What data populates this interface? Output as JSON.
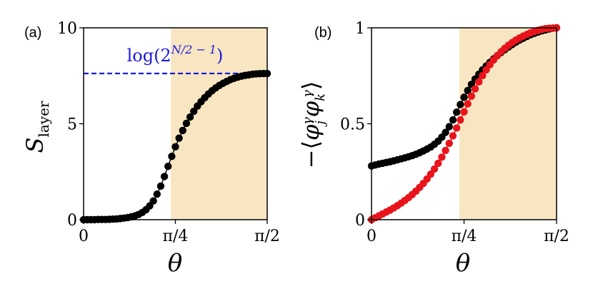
{
  "chart_data": [
    {
      "panel": "(a)",
      "type": "scatter",
      "xlabel": "θ",
      "ylabel": "S",
      "ylabel_sub": "layer",
      "xlim": [
        0,
        1.5708
      ],
      "ylim": [
        0,
        10
      ],
      "xticks": [
        {
          "value": 0,
          "label": "0"
        },
        {
          "value": 0.7854,
          "label": "π/4"
        },
        {
          "value": 1.5708,
          "label": "π/2"
        }
      ],
      "yticks": [
        {
          "value": 0,
          "label": "0"
        },
        {
          "value": 5,
          "label": "5"
        },
        {
          "value": 10,
          "label": "10"
        }
      ],
      "shaded_region": {
        "x_from": 0.7461,
        "x_to": 1.5708,
        "color": "#f8e6c2"
      },
      "reference_line": {
        "y": 7.62,
        "label": "log(2",
        "label_sup": "N/2 − 1",
        "label_end": ")",
        "color": "#1a1adb",
        "style": "dashed"
      },
      "grid": false,
      "series": [
        {
          "color": "#000000",
          "n_points": 51,
          "x": [
            0,
            0.0314,
            0.0628,
            0.0942,
            0.1257,
            0.1571,
            0.1885,
            0.2199,
            0.2513,
            0.2827,
            0.3142,
            0.3456,
            0.377,
            0.4084,
            0.4398,
            0.4712,
            0.5027,
            0.5341,
            0.5655,
            0.5969,
            0.6283,
            0.6597,
            0.6912,
            0.7226,
            0.754,
            0.7854,
            0.8168,
            0.8482,
            0.8796,
            0.9111,
            0.9425,
            0.9739,
            1.0053,
            1.0367,
            1.0681,
            1.0996,
            1.131,
            1.1624,
            1.1938,
            1.2252,
            1.2566,
            1.2881,
            1.3195,
            1.3509,
            1.3823,
            1.4137,
            1.4451,
            1.4765,
            1.508,
            1.5394,
            1.5708
          ],
          "y": [
            0,
            0,
            0,
            0,
            0.01,
            0.01,
            0.01,
            0.02,
            0.03,
            0.04,
            0.06,
            0.08,
            0.11,
            0.15,
            0.2,
            0.27,
            0.38,
            0.52,
            0.72,
            0.98,
            1.33,
            1.75,
            2.25,
            2.78,
            3.3,
            3.8,
            4.25,
            4.65,
            5.02,
            5.35,
            5.65,
            5.92,
            6.15,
            6.36,
            6.55,
            6.72,
            6.87,
            7.0,
            7.11,
            7.21,
            7.3,
            7.37,
            7.43,
            7.48,
            7.52,
            7.55,
            7.58,
            7.6,
            7.61,
            7.62,
            7.62
          ]
        }
      ]
    },
    {
      "panel": "(b)",
      "type": "scatter",
      "xlabel": "θ",
      "ylabel": "−⟨φ",
      "ylabel_parts": [
        "−⟨",
        "φ",
        "j",
        "γ",
        "φ",
        "k",
        "γ",
        "⟩"
      ],
      "xlim": [
        0,
        1.5708
      ],
      "ylim": [
        0,
        1
      ],
      "xticks": [
        {
          "value": 0,
          "label": "0"
        },
        {
          "value": 0.7854,
          "label": "π/4"
        },
        {
          "value": 1.5708,
          "label": "π/2"
        }
      ],
      "yticks": [
        {
          "value": 0,
          "label": "0"
        },
        {
          "value": 0.5,
          "label": "0.5"
        },
        {
          "value": 1,
          "label": "1"
        }
      ],
      "shaded_region": {
        "x_from": 0.7461,
        "x_to": 1.5708,
        "color": "#f8e6c2"
      },
      "grid": false,
      "series": [
        {
          "color": "#000000",
          "n_points": 51,
          "x": [
            0,
            0.0314,
            0.0628,
            0.0942,
            0.1257,
            0.1571,
            0.1885,
            0.2199,
            0.2513,
            0.2827,
            0.3142,
            0.3456,
            0.377,
            0.4084,
            0.4398,
            0.4712,
            0.5027,
            0.5341,
            0.5655,
            0.5969,
            0.6283,
            0.6597,
            0.6912,
            0.7226,
            0.754,
            0.7854,
            0.8168,
            0.8482,
            0.8796,
            0.9111,
            0.9425,
            0.9739,
            1.0053,
            1.0367,
            1.0681,
            1.0996,
            1.131,
            1.1624,
            1.1938,
            1.2252,
            1.2566,
            1.2881,
            1.3195,
            1.3509,
            1.3823,
            1.4137,
            1.4451,
            1.4765,
            1.508,
            1.5394,
            1.5708
          ],
          "y": [
            0.28,
            0.285,
            0.29,
            0.294,
            0.298,
            0.302,
            0.307,
            0.312,
            0.317,
            0.322,
            0.328,
            0.334,
            0.341,
            0.349,
            0.358,
            0.368,
            0.379,
            0.393,
            0.409,
            0.43,
            0.455,
            0.485,
            0.52,
            0.56,
            0.6,
            0.638,
            0.673,
            0.705,
            0.733,
            0.758,
            0.781,
            0.801,
            0.82,
            0.838,
            0.855,
            0.871,
            0.886,
            0.9,
            0.913,
            0.925,
            0.936,
            0.946,
            0.955,
            0.964,
            0.971,
            0.978,
            0.984,
            0.989,
            0.994,
            0.998,
            1.0
          ]
        },
        {
          "color": "#e8141b",
          "n_points": 51,
          "x": [
            0,
            0.0314,
            0.0628,
            0.0942,
            0.1257,
            0.1571,
            0.1885,
            0.2199,
            0.2513,
            0.2827,
            0.3142,
            0.3456,
            0.377,
            0.4084,
            0.4398,
            0.4712,
            0.5027,
            0.5341,
            0.5655,
            0.5969,
            0.6283,
            0.6597,
            0.6912,
            0.7226,
            0.754,
            0.7854,
            0.8168,
            0.8482,
            0.8796,
            0.9111,
            0.9425,
            0.9739,
            1.0053,
            1.0367,
            1.0681,
            1.0996,
            1.131,
            1.1624,
            1.1938,
            1.2252,
            1.2566,
            1.2881,
            1.3195,
            1.3509,
            1.3823,
            1.4137,
            1.4451,
            1.4765,
            1.508,
            1.5394,
            1.5708
          ],
          "y": [
            0,
            0.01,
            0.02,
            0.03,
            0.04,
            0.05,
            0.061,
            0.073,
            0.086,
            0.1,
            0.115,
            0.131,
            0.149,
            0.168,
            0.189,
            0.212,
            0.237,
            0.264,
            0.294,
            0.326,
            0.361,
            0.398,
            0.437,
            0.478,
            0.52,
            0.562,
            0.604,
            0.644,
            0.682,
            0.718,
            0.751,
            0.781,
            0.808,
            0.833,
            0.855,
            0.875,
            0.893,
            0.909,
            0.923,
            0.936,
            0.947,
            0.957,
            0.966,
            0.974,
            0.981,
            0.987,
            0.992,
            0.996,
            0.998,
            0.999,
            1.0
          ]
        }
      ]
    }
  ]
}
